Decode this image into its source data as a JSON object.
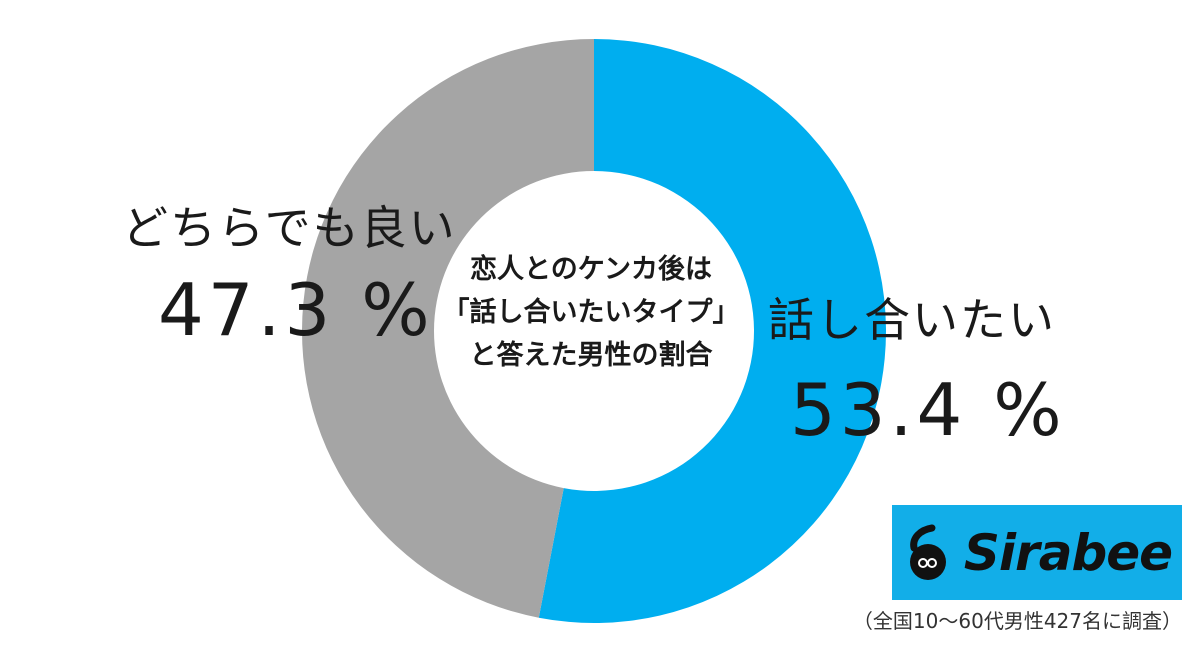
{
  "chart_data": {
    "type": "pie",
    "title": "恋人とのケンカ後は\n「話し合いたいタイプ」\nと答えた男性の割合",
    "slices": [
      {
        "label": "話し合いたい",
        "value": 53.4,
        "display": "53.4 %",
        "color": "#00aeef"
      },
      {
        "label": "どちらでも良い",
        "value": 47.3,
        "display": "47.3 %",
        "color": "#a5a5a5"
      }
    ]
  },
  "logo": {
    "text": "Sirabee",
    "background": "#12aee8"
  },
  "footnote": "（全国10〜60代男性427名に調査）"
}
